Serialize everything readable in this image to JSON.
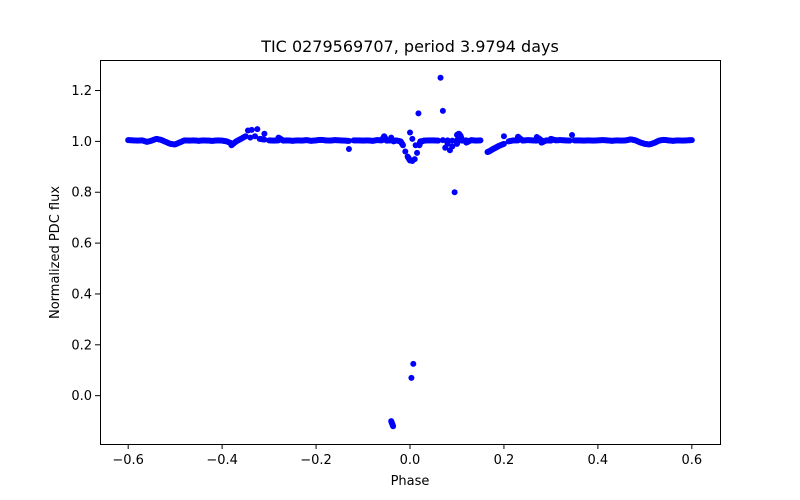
{
  "chart_data": {
    "type": "scatter",
    "title": "TIC 0279569707, period 3.9794 days",
    "xlabel": "Phase",
    "ylabel": "Normalized PDC flux",
    "xlim": [
      -0.66,
      0.66
    ],
    "ylim": [
      -0.19,
      1.32
    ],
    "xticks": [
      -0.6,
      -0.4,
      -0.2,
      0.0,
      0.2,
      0.4,
      0.6
    ],
    "xtick_labels": [
      "−0.6",
      "−0.4",
      "−0.2",
      "0.0",
      "0.2",
      "0.4",
      "0.6"
    ],
    "yticks": [
      0.0,
      0.2,
      0.4,
      0.6,
      0.8,
      1.0,
      1.2
    ],
    "ytick_labels": [
      "0.0",
      "0.2",
      "0.4",
      "0.6",
      "0.8",
      "1.0",
      "1.2"
    ],
    "grid": false,
    "marker_color": "#0000ff",
    "series": [
      {
        "name": "flux",
        "points": [
          [
            -0.6,
            1.005
          ],
          [
            -0.59,
            1.004
          ],
          [
            -0.58,
            1.003
          ],
          [
            -0.57,
            1.004
          ],
          [
            -0.56,
            0.998
          ],
          [
            -0.55,
            1.003
          ],
          [
            -0.54,
            1.01
          ],
          [
            -0.53,
            1.006
          ],
          [
            -0.52,
            0.998
          ],
          [
            -0.51,
            0.99
          ],
          [
            -0.5,
            0.988
          ],
          [
            -0.49,
            0.996
          ],
          [
            -0.48,
            1.004
          ],
          [
            -0.47,
            1.003
          ],
          [
            -0.46,
            1.004
          ],
          [
            -0.45,
            1.002
          ],
          [
            -0.44,
            1.004
          ],
          [
            -0.43,
            1.003
          ],
          [
            -0.42,
            1.002
          ],
          [
            -0.41,
            1.004
          ],
          [
            -0.4,
            1.003
          ],
          [
            -0.39,
            1.0
          ],
          [
            -0.38,
            0.992
          ],
          [
            -0.37,
            1.0
          ],
          [
            -0.36,
            1.01
          ],
          [
            -0.35,
            1.02
          ],
          [
            -0.34,
            1.015
          ],
          [
            -0.33,
            1.02
          ],
          [
            -0.32,
            1.01
          ],
          [
            -0.31,
            1.007
          ],
          [
            -0.3,
            1.004
          ],
          [
            -0.29,
            1.003
          ],
          [
            -0.28,
            1.004
          ],
          [
            -0.27,
            1.003
          ],
          [
            -0.26,
            1.004
          ],
          [
            -0.25,
            1.002
          ],
          [
            -0.24,
            1.004
          ],
          [
            -0.23,
            1.003
          ],
          [
            -0.22,
            1.005
          ],
          [
            -0.21,
            1.002
          ],
          [
            -0.2,
            1.004
          ],
          [
            -0.19,
            1.006
          ],
          [
            -0.18,
            1.004
          ],
          [
            -0.17,
            1.003
          ],
          [
            -0.16,
            1.005
          ],
          [
            -0.15,
            1.004
          ],
          [
            -0.14,
            1.003
          ],
          [
            -0.13,
            1.002
          ],
          [
            -0.12,
            1.004
          ],
          [
            -0.11,
            1.004
          ],
          [
            -0.1,
            1.003
          ],
          [
            -0.09,
            1.004
          ],
          [
            -0.08,
            1.002
          ],
          [
            -0.07,
            1.005
          ],
          [
            -0.06,
            1.004
          ],
          [
            -0.05,
            1.003
          ],
          [
            -0.04,
            1.004
          ],
          [
            -0.03,
            1.004
          ],
          [
            -0.02,
            1.0
          ],
          [
            -0.015,
            0.985
          ],
          [
            -0.01,
            0.96
          ],
          [
            -0.005,
            0.94
          ],
          [
            0.0,
            0.925
          ],
          [
            0.005,
            0.923
          ],
          [
            0.01,
            0.93
          ],
          [
            0.015,
            0.955
          ],
          [
            0.02,
            0.985
          ],
          [
            0.025,
            1.0
          ],
          [
            0.03,
            1.003
          ],
          [
            0.04,
            1.004
          ],
          [
            0.05,
            1.004
          ],
          [
            0.06,
            1.003
          ],
          [
            0.07,
            1.005
          ],
          [
            0.08,
            1.004
          ],
          [
            0.09,
            1.003
          ],
          [
            0.1,
            1.004
          ],
          [
            0.11,
            1.003
          ],
          [
            0.12,
            1.004
          ],
          [
            0.13,
            1.005
          ],
          [
            0.14,
            1.003
          ],
          [
            0.15,
            1.004
          ],
          [
            0.165,
            0.958
          ],
          [
            0.17,
            0.962
          ],
          [
            0.175,
            0.968
          ],
          [
            0.18,
            0.973
          ],
          [
            0.185,
            0.978
          ],
          [
            0.19,
            0.983
          ],
          [
            0.2,
            0.99
          ],
          [
            0.21,
            1.0
          ],
          [
            0.22,
            1.004
          ],
          [
            0.23,
            1.004
          ],
          [
            0.24,
            1.003
          ],
          [
            0.25,
            1.005
          ],
          [
            0.26,
            1.004
          ],
          [
            0.27,
            1.003
          ],
          [
            0.28,
            1.004
          ],
          [
            0.29,
            1.004
          ],
          [
            0.3,
            1.003
          ],
          [
            0.31,
            1.004
          ],
          [
            0.32,
            1.005
          ],
          [
            0.33,
            1.004
          ],
          [
            0.34,
            1.003
          ],
          [
            0.35,
            1.004
          ],
          [
            0.36,
            1.004
          ],
          [
            0.37,
            1.003
          ],
          [
            0.38,
            1.004
          ],
          [
            0.39,
            1.003
          ],
          [
            0.4,
            1.004
          ],
          [
            0.41,
            1.005
          ],
          [
            0.42,
            1.004
          ],
          [
            0.43,
            1.002
          ],
          [
            0.44,
            1.004
          ],
          [
            0.45,
            1.003
          ],
          [
            0.46,
            1.004
          ],
          [
            0.47,
            1.008
          ],
          [
            0.48,
            1.004
          ],
          [
            0.49,
            0.996
          ],
          [
            0.5,
            0.99
          ],
          [
            0.51,
            0.988
          ],
          [
            0.52,
            0.994
          ],
          [
            0.53,
            1.003
          ],
          [
            0.54,
            1.006
          ],
          [
            0.55,
            1.004
          ],
          [
            0.56,
            1.002
          ],
          [
            0.57,
            1.004
          ],
          [
            0.58,
            1.003
          ],
          [
            0.59,
            1.004
          ],
          [
            0.6,
            1.005
          ],
          [
            -0.345,
            1.043
          ],
          [
            -0.337,
            1.045
          ],
          [
            -0.325,
            1.048
          ],
          [
            -0.31,
            1.03
          ],
          [
            -0.28,
            1.015
          ],
          [
            -0.13,
            0.97
          ],
          [
            -0.38,
            0.985
          ],
          [
            0.1,
            0.99
          ],
          [
            0.12,
            0.995
          ],
          [
            0.2,
            1.02
          ],
          [
            0.23,
            1.018
          ],
          [
            0.27,
            1.017
          ],
          [
            0.345,
            1.025
          ],
          [
            0.28,
            0.995
          ],
          [
            0.3,
            1.01
          ],
          [
            -0.055,
            1.02
          ],
          [
            -0.04,
            1.015
          ],
          [
            0.0,
            1.035
          ],
          [
            0.005,
            1.01
          ],
          [
            0.012,
            0.985
          ],
          [
            0.018,
            1.11
          ],
          [
            0.022,
            1.0
          ],
          [
            0.075,
            0.975
          ],
          [
            0.08,
            0.99
          ],
          [
            0.085,
            0.965
          ],
          [
            0.09,
            0.98
          ],
          [
            0.1,
            1.025
          ],
          [
            0.104,
            1.03
          ],
          [
            0.108,
            1.02
          ],
          [
            0.065,
            1.25
          ],
          [
            0.07,
            1.12
          ],
          [
            0.095,
            0.8
          ],
          [
            -0.035,
            1.0
          ],
          [
            0.007,
            0.125
          ],
          [
            0.003,
            0.07
          ],
          [
            -0.04,
            -0.1
          ],
          [
            -0.036,
            -0.12
          ]
        ]
      }
    ]
  }
}
